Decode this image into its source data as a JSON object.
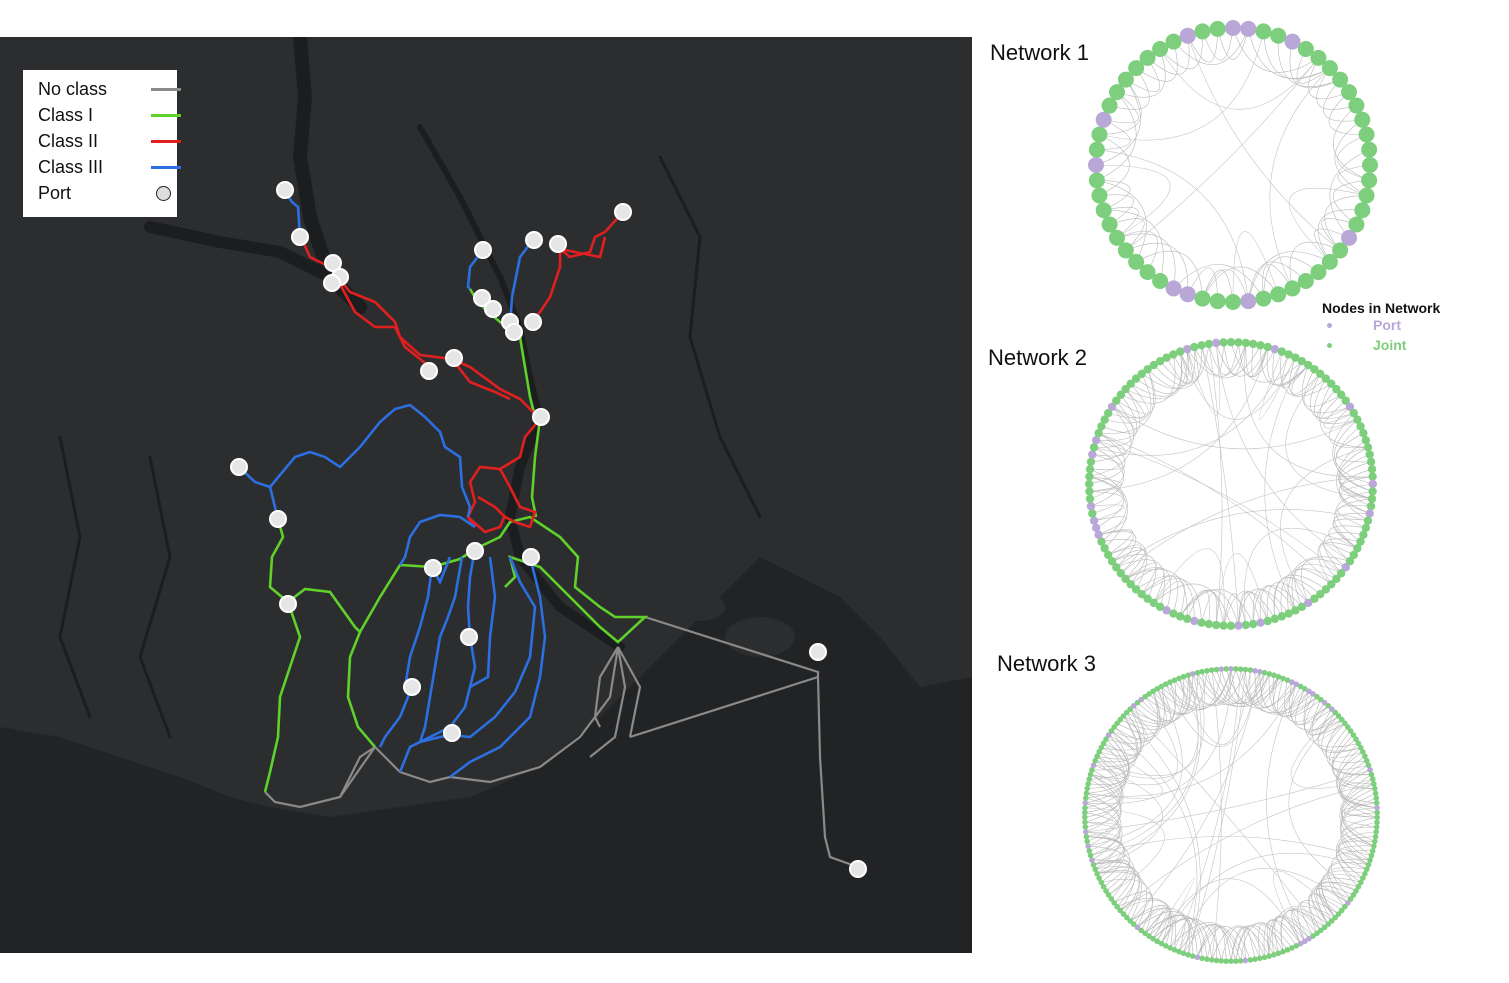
{
  "legend": {
    "items": [
      {
        "label": "No class",
        "color": "#8a8a8a",
        "kind": "line"
      },
      {
        "label": "Class I",
        "color": "#5fd12a",
        "kind": "line"
      },
      {
        "label": "Class II",
        "color": "#e02020",
        "kind": "line"
      },
      {
        "label": "Class III",
        "color": "#2b6fe0",
        "kind": "line"
      },
      {
        "label": "Port",
        "color": "#dddddd",
        "kind": "circle"
      }
    ]
  },
  "map": {
    "background_color": "#2c2d2e",
    "sea_color": "#212325",
    "class_colors": {
      "no_class": "#8a8a8a",
      "class_i": "#5fd12a",
      "class_ii": "#e02020",
      "class_iii": "#2b6fe0",
      "port_fill": "#e6e6e6"
    }
  },
  "networks": [
    {
      "title": "Network 1",
      "node_count": 56
    },
    {
      "title": "Network 2",
      "node_count": 120
    },
    {
      "title": "Network 3",
      "node_count": 190
    }
  ],
  "nodes_legend": {
    "title": "Nodes in Network",
    "items": [
      {
        "label": "Port",
        "color": "#b9a7d8"
      },
      {
        "label": "Joint",
        "color": "#7dcf7d"
      }
    ]
  }
}
